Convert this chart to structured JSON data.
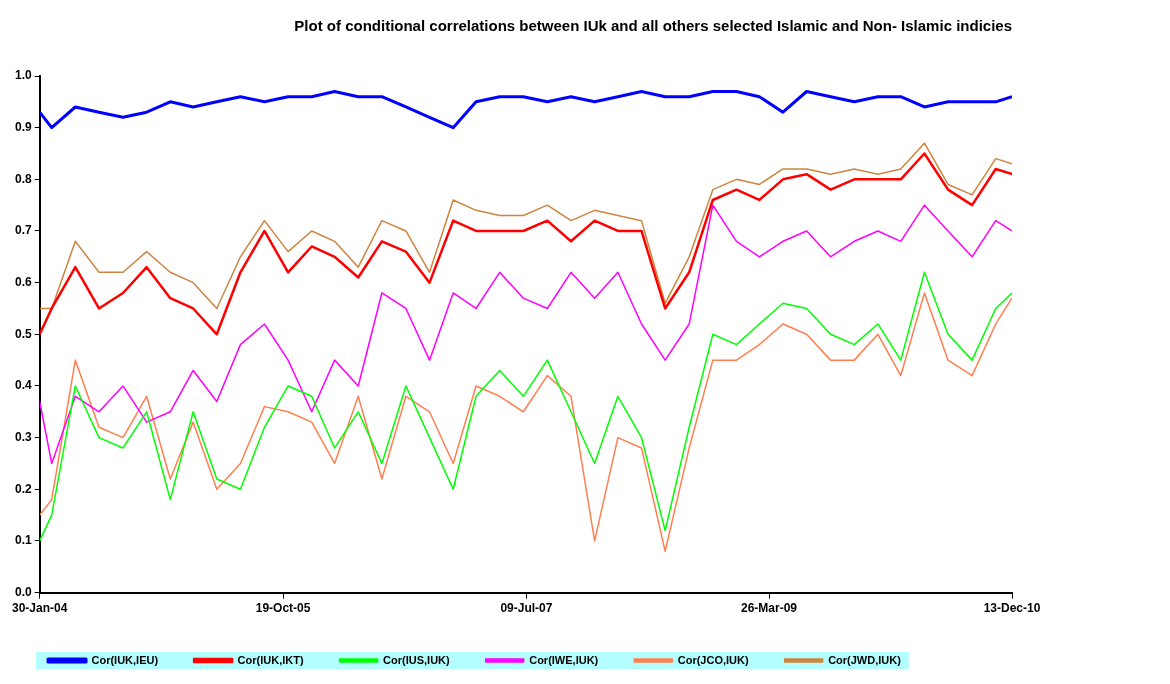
{
  "chart_data": {
    "type": "line",
    "title": "Plot of conditional correlations between IUk and all others selected Islamic and Non- Islamic indicies",
    "x": [
      "2004-01-30",
      "2004-03",
      "2004-05",
      "2004-07",
      "2004-09",
      "2004-11",
      "2005-01",
      "2005-03",
      "2005-05",
      "2005-07",
      "2005-09",
      "2005-11",
      "2006-01",
      "2006-03",
      "2006-05",
      "2006-07",
      "2006-09",
      "2006-11",
      "2007-01",
      "2007-03",
      "2007-05",
      "2007-07",
      "2007-09",
      "2007-11",
      "2008-01",
      "2008-03",
      "2008-05",
      "2008-07",
      "2008-09",
      "2008-11",
      "2009-01",
      "2009-03",
      "2009-05",
      "2009-07",
      "2009-09",
      "2009-11",
      "2010-01",
      "2010-03",
      "2010-05",
      "2010-07",
      "2010-09",
      "2010-11",
      "2010-12-13"
    ],
    "series": [
      {
        "name": "Cor(IUK,IEU)",
        "color": "#0000ff",
        "values": [
          0.93,
          0.9,
          0.94,
          0.93,
          0.92,
          0.93,
          0.95,
          0.94,
          0.95,
          0.96,
          0.95,
          0.96,
          0.96,
          0.97,
          0.96,
          0.96,
          0.94,
          0.92,
          0.9,
          0.95,
          0.96,
          0.96,
          0.95,
          0.96,
          0.95,
          0.96,
          0.97,
          0.96,
          0.96,
          0.97,
          0.97,
          0.96,
          0.93,
          0.97,
          0.96,
          0.95,
          0.96,
          0.96,
          0.94,
          0.95,
          0.95,
          0.95,
          0.96
        ]
      },
      {
        "name": "Cor(IUK,IKT)",
        "color": "#ff0000",
        "values": [
          0.5,
          0.55,
          0.63,
          0.55,
          0.58,
          0.63,
          0.57,
          0.55,
          0.5,
          0.62,
          0.7,
          0.62,
          0.67,
          0.65,
          0.61,
          0.68,
          0.66,
          0.6,
          0.72,
          0.7,
          0.7,
          0.7,
          0.72,
          0.68,
          0.72,
          0.7,
          0.7,
          0.55,
          0.62,
          0.76,
          0.78,
          0.76,
          0.8,
          0.81,
          0.78,
          0.8,
          0.8,
          0.8,
          0.85,
          0.78,
          0.75,
          0.82,
          0.81
        ]
      },
      {
        "name": "Cor(IUS,IUK)",
        "color": "#00ff00",
        "values": [
          0.1,
          0.15,
          0.4,
          0.3,
          0.28,
          0.35,
          0.18,
          0.35,
          0.22,
          0.2,
          0.32,
          0.4,
          0.38,
          0.28,
          0.35,
          0.25,
          0.4,
          0.3,
          0.2,
          0.38,
          0.43,
          0.38,
          0.45,
          0.35,
          0.25,
          0.38,
          0.3,
          0.12,
          0.32,
          0.5,
          0.48,
          0.52,
          0.56,
          0.55,
          0.5,
          0.48,
          0.52,
          0.45,
          0.62,
          0.5,
          0.45,
          0.55,
          0.58
        ]
      },
      {
        "name": "Cor(IWE,IUK)",
        "color": "#ff00ff",
        "values": [
          0.37,
          0.25,
          0.38,
          0.35,
          0.4,
          0.33,
          0.35,
          0.43,
          0.37,
          0.48,
          0.52,
          0.45,
          0.35,
          0.45,
          0.4,
          0.58,
          0.55,
          0.45,
          0.58,
          0.55,
          0.62,
          0.57,
          0.55,
          0.62,
          0.57,
          0.62,
          0.52,
          0.45,
          0.52,
          0.75,
          0.68,
          0.65,
          0.68,
          0.7,
          0.65,
          0.68,
          0.7,
          0.68,
          0.75,
          0.7,
          0.65,
          0.72,
          0.7
        ]
      },
      {
        "name": "Cor(JCO,IUK)",
        "color": "#ff7f50",
        "values": [
          0.15,
          0.18,
          0.45,
          0.32,
          0.3,
          0.38,
          0.22,
          0.33,
          0.2,
          0.25,
          0.36,
          0.35,
          0.33,
          0.25,
          0.38,
          0.22,
          0.38,
          0.35,
          0.25,
          0.4,
          0.38,
          0.35,
          0.42,
          0.38,
          0.1,
          0.3,
          0.28,
          0.08,
          0.28,
          0.45,
          0.45,
          0.48,
          0.52,
          0.5,
          0.45,
          0.45,
          0.5,
          0.42,
          0.58,
          0.45,
          0.42,
          0.52,
          0.57
        ]
      },
      {
        "name": "Cor(JWD,IUK)",
        "color": "#cd853f",
        "values": [
          0.55,
          0.55,
          0.68,
          0.62,
          0.62,
          0.66,
          0.62,
          0.6,
          0.55,
          0.65,
          0.72,
          0.66,
          0.7,
          0.68,
          0.63,
          0.72,
          0.7,
          0.62,
          0.76,
          0.74,
          0.73,
          0.73,
          0.75,
          0.72,
          0.74,
          0.73,
          0.72,
          0.56,
          0.65,
          0.78,
          0.8,
          0.79,
          0.82,
          0.82,
          0.81,
          0.82,
          0.81,
          0.82,
          0.87,
          0.79,
          0.77,
          0.84,
          0.83
        ]
      }
    ],
    "xlim": [
      "2004-01-30",
      "2010-12-13"
    ],
    "xticks": [
      {
        "value": "2004-01-30",
        "label": "30-Jan-04"
      },
      {
        "value": "2005-10-19",
        "label": "19-Oct-05"
      },
      {
        "value": "2007-07-09",
        "label": "09-Jul-07"
      },
      {
        "value": "2009-03-26",
        "label": "26-Mar-09"
      },
      {
        "value": "2010-12-13",
        "label": "13-Dec-10"
      }
    ],
    "ylim": [
      0,
      1
    ],
    "yticks": [
      {
        "value": 0,
        "label": "0.0"
      },
      {
        "value": 0.1,
        "label": "0.1"
      },
      {
        "value": 0.2,
        "label": "0.2"
      },
      {
        "value": 0.3,
        "label": "0.3"
      },
      {
        "value": 0.4,
        "label": "0.4"
      },
      {
        "value": 0.5,
        "label": "0.5"
      },
      {
        "value": 0.6,
        "label": "0.6"
      },
      {
        "value": 0.7,
        "label": "0.7"
      },
      {
        "value": 0.8,
        "label": "0.8"
      },
      {
        "value": 0.9,
        "label": "0.9"
      },
      {
        "value": 1,
        "label": "1.0"
      }
    ],
    "grid": false,
    "legend": "bottom",
    "marker": "none",
    "line_style": "solid"
  }
}
